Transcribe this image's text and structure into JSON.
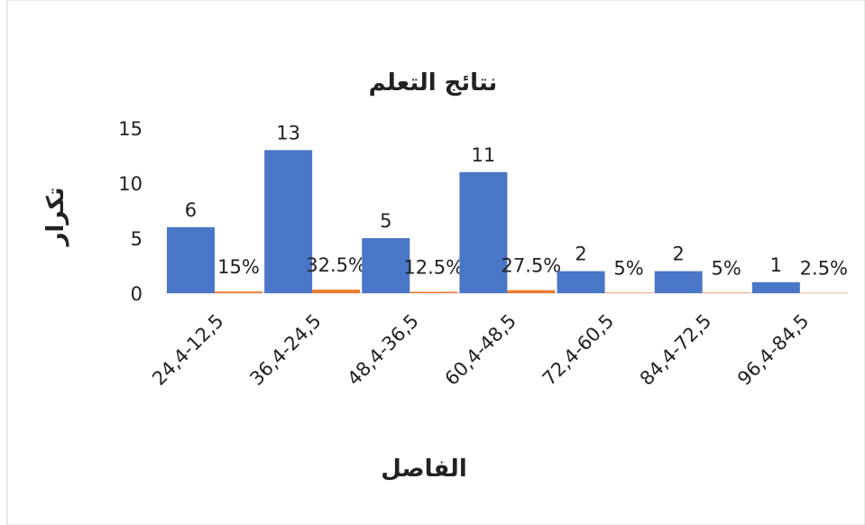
{
  "chart_data": {
    "type": "bar",
    "title": "نتائج التعلم",
    "ylabel": "تكرار",
    "xlabel": "الفاصل",
    "categories": [
      "24,4-12,5",
      "36,4-24,5",
      "48,4-36,5",
      "60,4-48,5",
      "72,4-60,5",
      "84,4-72,5",
      "96,4-84,5"
    ],
    "series": [
      {
        "color": "#4a76c8",
        "values": [
          6,
          13,
          5,
          11,
          2,
          2,
          1
        ]
      },
      {
        "color": "#ed7d31",
        "values": [
          0.15,
          0.325,
          0.125,
          0.275,
          0.05,
          0.05,
          0.025
        ],
        "value_labels": [
          "15%",
          "32.5%",
          "12.5%",
          "27.5%",
          "5%",
          "5%",
          "2.5%"
        ]
      }
    ],
    "ylim": [
      0,
      15
    ],
    "yticks": [
      0,
      5,
      10,
      15
    ]
  }
}
